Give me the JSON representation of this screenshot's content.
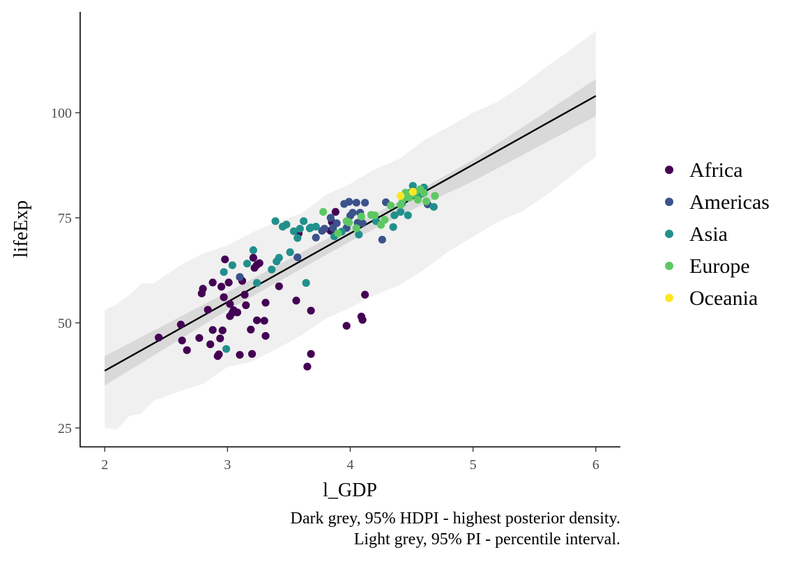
{
  "chart_data": {
    "type": "scatter",
    "xlabel": "l_GDP",
    "ylabel": "lifeExp",
    "xlim": [
      1.8,
      6.2
    ],
    "ylim": [
      20.5,
      124
    ],
    "x_ticks": [
      2,
      3,
      4,
      5,
      6
    ],
    "y_ticks": [
      25,
      50,
      75,
      100
    ],
    "grid": false,
    "legend_position": "right",
    "caption": [
      "Dark grey, 95% HDPI - highest posterior density.",
      "Light grey, 95% PI - percentile interval."
    ],
    "colors": {
      "Africa": "#440154",
      "Americas": "#3b528b",
      "Asia": "#21908c",
      "Europe": "#5dc863",
      "Oceania": "#fde725",
      "line": "#000000",
      "hpdi_band": "#d9d9d9",
      "pi_band": "#f0f0f0"
    },
    "regression_line": {
      "x": [
        2,
        6
      ],
      "y": [
        38.6,
        104.0
      ]
    },
    "hpdi_band": {
      "x": [
        2.0,
        3.0,
        4.0,
        4.5,
        5.0,
        6.0
      ],
      "lower": [
        35.1,
        53.0,
        69.4,
        76.9,
        83.7,
        99.2
      ],
      "upper": [
        42.1,
        57.3,
        73.0,
        80.5,
        88.8,
        108.0
      ]
    },
    "pi_band": {
      "x": [
        2.0,
        2.1,
        2.2,
        2.3,
        2.4,
        2.6,
        2.8,
        3.0,
        3.2,
        3.4,
        3.6,
        3.8,
        4.0,
        4.2,
        4.4,
        4.6,
        4.8,
        5.0,
        5.2,
        5.4,
        5.6,
        5.8,
        6.0
      ],
      "lower": [
        25.0,
        24.6,
        27.8,
        28.4,
        31.5,
        33.6,
        35.5,
        39.5,
        40.8,
        43.8,
        47.0,
        51.0,
        53.6,
        56.6,
        59.0,
        62.6,
        67.0,
        70.5,
        74.0,
        76.5,
        80.5,
        85.0,
        89.5
      ],
      "upper": [
        53.0,
        54.5,
        56.6,
        59.4,
        59.4,
        63.4,
        66.5,
        68.4,
        71.5,
        74.0,
        76.0,
        80.4,
        83.1,
        86.5,
        89.0,
        93.5,
        96.6,
        100.0,
        102.6,
        106.5,
        111.0,
        115.0,
        119.5
      ]
    },
    "series": [
      {
        "name": "Africa",
        "x": [
          2.44,
          2.62,
          2.63,
          2.67,
          2.77,
          2.79,
          2.8,
          2.84,
          2.86,
          2.88,
          2.88,
          2.92,
          2.93,
          2.94,
          2.95,
          2.96,
          2.97,
          2.98,
          3.01,
          3.02,
          3.02,
          3.04,
          3.05,
          3.08,
          3.1,
          3.12,
          3.14,
          3.15,
          3.19,
          3.2,
          3.21,
          3.22,
          3.24,
          3.24,
          3.26,
          3.3,
          3.31,
          3.31,
          3.42,
          3.56,
          3.58,
          3.65,
          3.68,
          3.68,
          3.84,
          3.85,
          3.88,
          3.97,
          4.09,
          4.1,
          4.12
        ],
        "y": [
          46.5,
          49.6,
          45.8,
          43.5,
          46.4,
          57.0,
          58.1,
          53.1,
          44.9,
          59.6,
          48.3,
          42.1,
          42.5,
          46.3,
          58.6,
          48.2,
          56.1,
          65.1,
          59.6,
          51.6,
          54.5,
          52.4,
          53.0,
          52.5,
          42.4,
          60.0,
          56.7,
          54.2,
          48.4,
          42.6,
          65.5,
          63.1,
          50.6,
          63.8,
          64.2,
          50.5,
          46.9,
          54.8,
          58.7,
          55.3,
          71.3,
          39.6,
          42.6,
          52.9,
          71.9,
          74.0,
          76.4,
          49.3,
          51.5,
          50.7,
          56.7
        ]
      },
      {
        "name": "Americas",
        "x": [
          3.1,
          3.45,
          3.57,
          3.72,
          3.77,
          3.79,
          3.84,
          3.86,
          3.89,
          3.95,
          3.97,
          3.99,
          4.0,
          4.02,
          4.05,
          4.06,
          4.08,
          4.1,
          4.12,
          4.26,
          4.29,
          4.63
        ],
        "y": [
          60.9,
          72.9,
          65.6,
          70.3,
          71.9,
          72.4,
          75.0,
          72.6,
          73.7,
          78.3,
          72.6,
          78.8,
          75.5,
          76.2,
          78.6,
          73.8,
          76.2,
          73.7,
          78.6,
          69.8,
          78.7,
          78.2
        ]
      },
      {
        "name": "Asia",
        "x": [
          2.97,
          2.99,
          3.04,
          3.16,
          3.21,
          3.24,
          3.36,
          3.39,
          3.4,
          3.42,
          3.45,
          3.48,
          3.51,
          3.54,
          3.57,
          3.59,
          3.62,
          3.64,
          3.67,
          3.68,
          3.72,
          3.87,
          3.93,
          4.07,
          4.21,
          4.35,
          4.36,
          4.41,
          4.42,
          4.45,
          4.47,
          4.49,
          4.51,
          4.55,
          4.58,
          4.6,
          4.68
        ],
        "y": [
          62.1,
          43.8,
          63.7,
          64.1,
          67.3,
          59.5,
          62.7,
          74.2,
          64.6,
          65.5,
          72.9,
          73.4,
          66.8,
          71.8,
          70.2,
          72.4,
          74.2,
          59.5,
          72.5,
          72.7,
          72.9,
          70.6,
          71.7,
          71.0,
          74.2,
          72.8,
          75.6,
          76.4,
          78.4,
          80.0,
          75.6,
          81.0,
          82.6,
          79.8,
          80.7,
          82.2,
          77.6
        ]
      },
      {
        "name": "Europe",
        "x": [
          3.78,
          3.9,
          3.97,
          3.99,
          4.05,
          4.09,
          4.17,
          4.2,
          4.25,
          4.28,
          4.33,
          4.41,
          4.43,
          4.45,
          4.48,
          4.5,
          4.53,
          4.55,
          4.57,
          4.6,
          4.62,
          4.69
        ],
        "y": [
          76.4,
          71.3,
          74.2,
          73.9,
          72.5,
          75.3,
          75.7,
          75.6,
          73.3,
          74.5,
          77.9,
          78.1,
          79.4,
          81.0,
          79.8,
          80.5,
          81.2,
          79.3,
          81.8,
          80.9,
          78.9,
          80.2
        ]
      },
      {
        "name": "Oceania",
        "x": [
          4.41,
          4.51
        ],
        "y": [
          80.2,
          81.2
        ]
      }
    ]
  }
}
